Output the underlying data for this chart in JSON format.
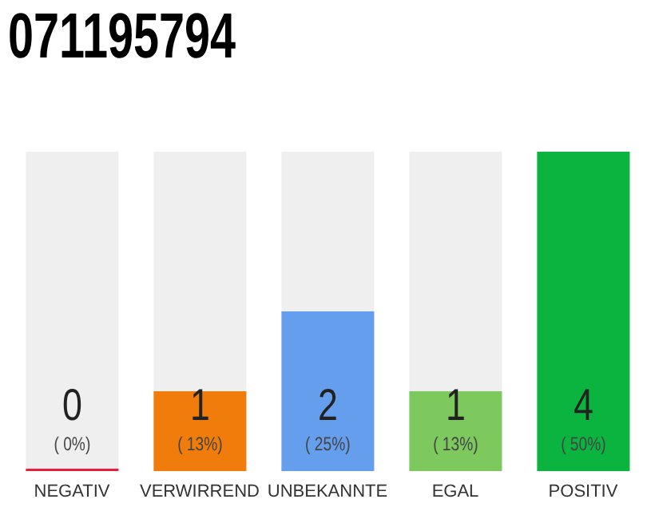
{
  "chart_data": {
    "type": "bar",
    "title": "071195794",
    "categories": [
      "NEGATIV",
      "VERWIRREND",
      "UNBEKANNTE",
      "EGAL",
      "POSITIV"
    ],
    "values": [
      0,
      1,
      2,
      1,
      4
    ],
    "colors": [
      "#e8203a",
      "#f07c0c",
      "#669eee",
      "#7dc95e",
      "#0bb43f"
    ],
    "data_labels": true,
    "tick_labels": "x",
    "annotations": [
      "( 0%)",
      "( 13%)",
      "( 25%)",
      "( 13%)",
      "( 50%)"
    ]
  }
}
